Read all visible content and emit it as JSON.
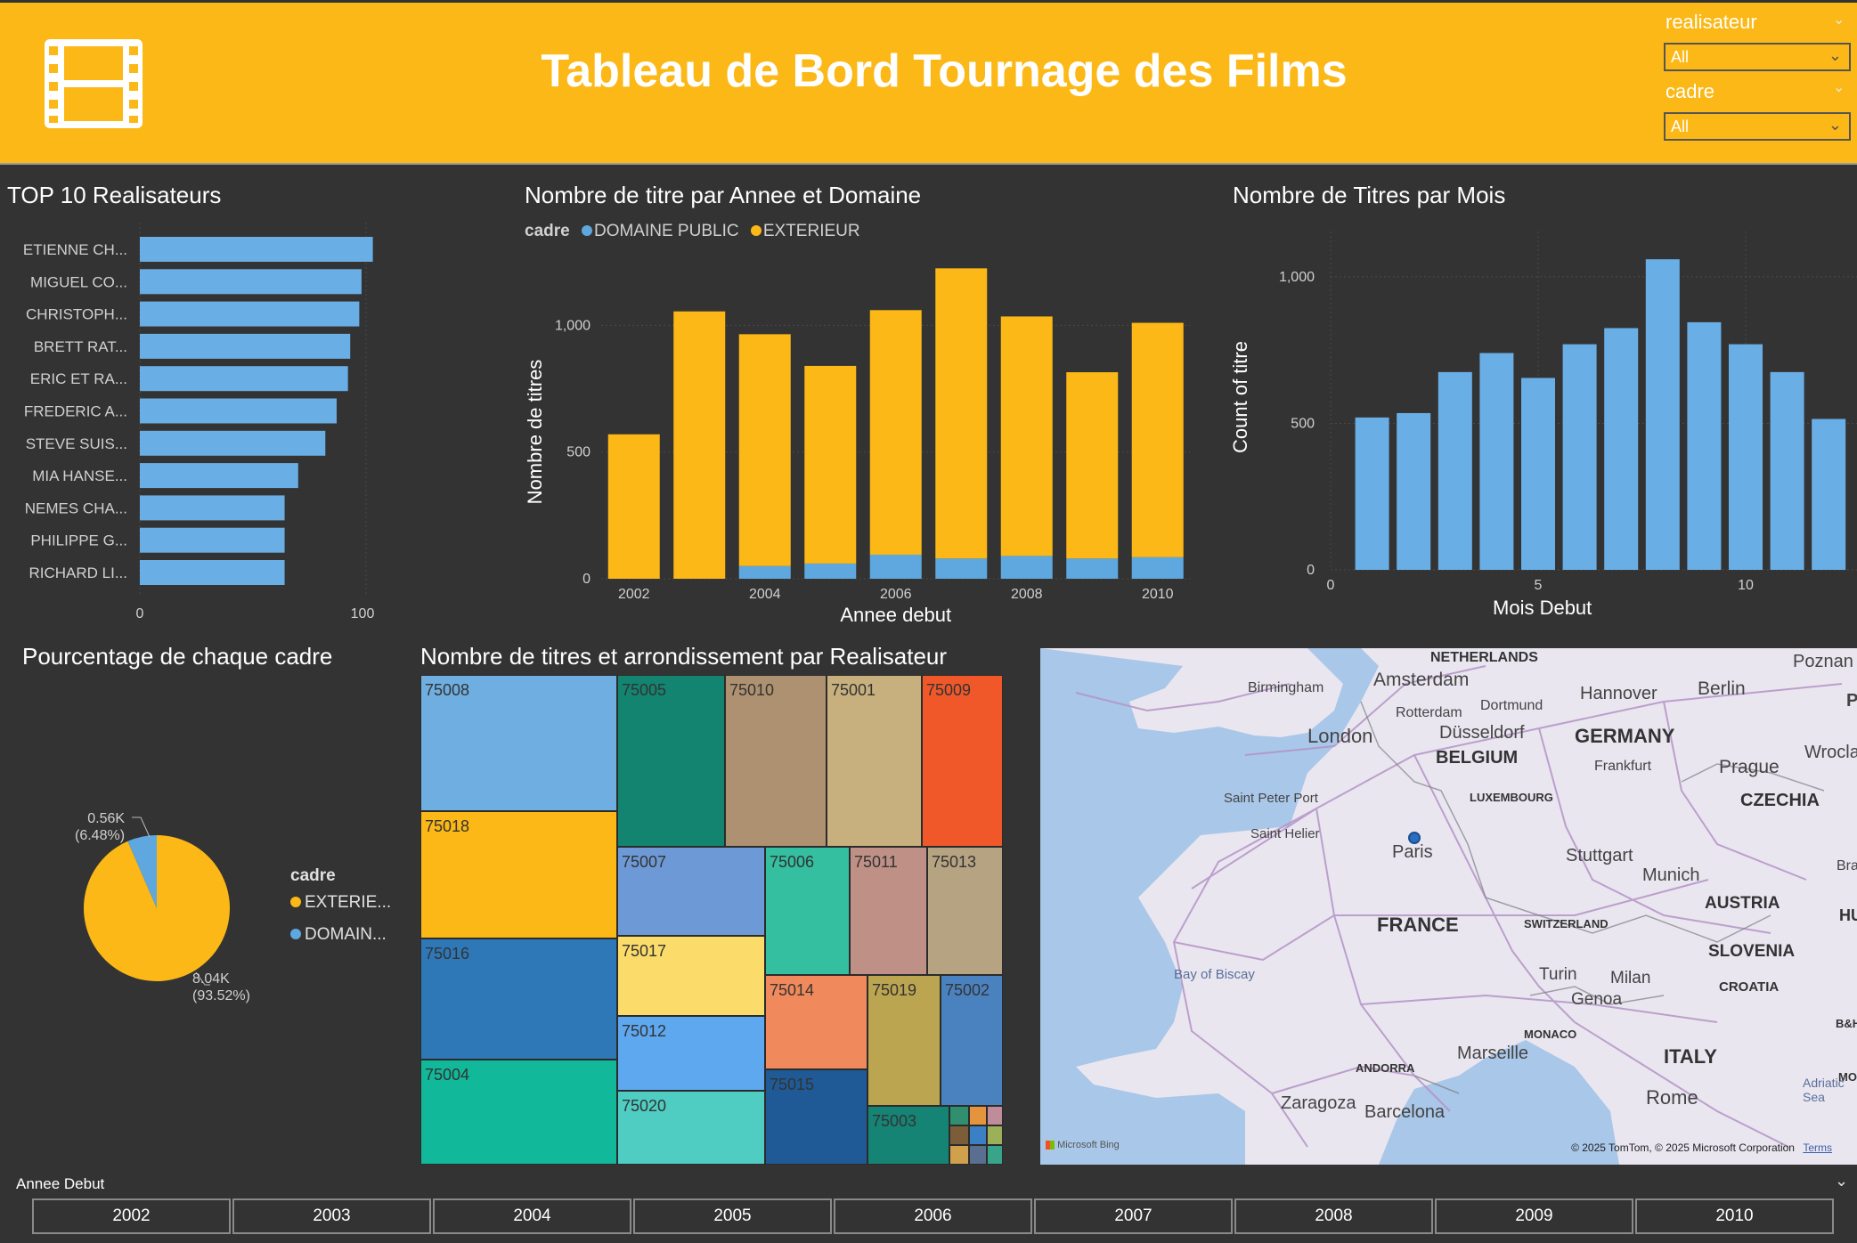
{
  "header": {
    "title": "Tableau de Bord Tournage des Films",
    "icon": "film-strip-icon"
  },
  "slicers": {
    "realisateur": {
      "label": "realisateur",
      "value": "All"
    },
    "cadre": {
      "label": "cadre",
      "value": "All"
    }
  },
  "top10": {
    "title": "TOP 10 Realisateurs",
    "items": [
      {
        "name": "ETIENNE CH...",
        "value": 103
      },
      {
        "name": "MIGUEL CO...",
        "value": 98
      },
      {
        "name": "CHRISTOPH...",
        "value": 97
      },
      {
        "name": "BRETT RAT...",
        "value": 93
      },
      {
        "name": "ERIC ET RA...",
        "value": 92
      },
      {
        "name": "FREDERIC A...",
        "value": 87
      },
      {
        "name": "STEVE SUIS...",
        "value": 82
      },
      {
        "name": "MIA HANSE...",
        "value": 70
      },
      {
        "name": "NEMES CHA...",
        "value": 64
      },
      {
        "name": "PHILIPPE G...",
        "value": 64
      },
      {
        "name": "RICHARD LI...",
        "value": 64
      }
    ],
    "ticks": [
      "0",
      "100"
    ]
  },
  "year_chart": {
    "title": "Nombre de titre par Annee et Domaine",
    "legend_title": "cadre",
    "legend": [
      {
        "name": "DOMAINE PUBLIC",
        "color": "#5ea8df"
      },
      {
        "name": "EXTERIEUR",
        "color": "#fbb816"
      }
    ],
    "xlabel": "Annee debut",
    "ylabel": "Nombre de titres",
    "yticks": [
      "0",
      "500",
      "1,000"
    ],
    "xticks": [
      "2002",
      "2004",
      "2006",
      "2008",
      "2010"
    ]
  },
  "month_chart": {
    "title": "Nombre de Titres par Mois",
    "xlabel": "Mois Debut",
    "ylabel": "Count of titre",
    "yticks": [
      "0",
      "500",
      "1,000"
    ],
    "xticks": [
      "0",
      "5",
      "10"
    ]
  },
  "pie": {
    "title": "Pourcentage de chaque cadre",
    "legend_title": "cadre",
    "legend": [
      {
        "name": "EXTERIE...",
        "color": "#fbb816"
      },
      {
        "name": "DOMAIN...",
        "color": "#5ea8df"
      }
    ],
    "label_small_value": "0.56K",
    "label_small_pct": "(6.48%)",
    "label_big_value": "8.04K",
    "label_big_pct": "(93.52%)"
  },
  "treemap": {
    "title": "Nombre de titres et arrondissement par Realisateur",
    "cells": [
      {
        "label": "75008",
        "color": "#6faee0"
      },
      {
        "label": "75018",
        "color": "#fbb816"
      },
      {
        "label": "75016",
        "color": "#2f78b8"
      },
      {
        "label": "75004",
        "color": "#12b89a"
      },
      {
        "label": "75005",
        "color": "#128470"
      },
      {
        "label": "75010",
        "color": "#ae9170"
      },
      {
        "label": "75001",
        "color": "#c8b07e"
      },
      {
        "label": "75009",
        "color": "#f0582a"
      },
      {
        "label": "75007",
        "color": "#6d9ad6"
      },
      {
        "label": "75006",
        "color": "#33bfa0"
      },
      {
        "label": "75011",
        "color": "#bf9186"
      },
      {
        "label": "75013",
        "color": "#b6a382"
      },
      {
        "label": "75017",
        "color": "#fbdc6a"
      },
      {
        "label": "75012",
        "color": "#5ea8f0"
      },
      {
        "label": "75020",
        "color": "#4fcdc3"
      },
      {
        "label": "75014",
        "color": "#f08a5c"
      },
      {
        "label": "75019",
        "color": "#bca550"
      },
      {
        "label": "75002",
        "color": "#4a82c0"
      },
      {
        "label": "75015",
        "color": "#1f5a96"
      },
      {
        "label": "75003",
        "color": "#158474"
      }
    ]
  },
  "map": {
    "cities": [
      "Birmingham",
      "Amsterdam",
      "Rotterdam",
      "Dortmund",
      "Hannover",
      "Berlin",
      "Poznan",
      "London",
      "Düsseldorf",
      "Wroclaw",
      "Prague",
      "Frankfurt",
      "Saint Peter Port",
      "Saint Helier",
      "Paris",
      "Stuttgart",
      "Munich",
      "Turin",
      "Milan",
      "Genoa",
      "Marseille",
      "Zaragoza",
      "Barcelona",
      "Rome"
    ],
    "countries": [
      "NETHERLANDS",
      "BELGIUM",
      "GERMANY",
      "LUXEMBOURG",
      "CZECHIA",
      "FRANCE",
      "SWITZERLAND",
      "AUSTRIA",
      "SLOVENIA",
      "CROATIA",
      "MONACO",
      "ANDORRA",
      "ITALY"
    ],
    "water": [
      "Bay of Biscay",
      "Adriatic Sea"
    ],
    "edge_labels": [
      "P",
      "Bra",
      "HU",
      "B&H",
      "MO"
    ],
    "copyright": "© 2025 TomTom, © 2025 Microsoft Corporation",
    "terms": "Terms",
    "brand": "Microsoft Bing"
  },
  "year_slicer": {
    "label": "Annee Debut",
    "years": [
      "2002",
      "2003",
      "2004",
      "2005",
      "2006",
      "2007",
      "2008",
      "2009",
      "2010"
    ]
  },
  "chart_data": [
    {
      "type": "bar",
      "title": "TOP 10 Realisateurs",
      "categories": [
        "ETIENNE CH...",
        "MIGUEL CO...",
        "CHRISTOPH...",
        "BRETT RAT...",
        "ERIC ET RA...",
        "FREDERIC A...",
        "STEVE SUIS...",
        "MIA HANSE...",
        "NEMES CHA...",
        "PHILIPPE G...",
        "RICHARD LI..."
      ],
      "values": [
        103,
        98,
        97,
        93,
        92,
        87,
        82,
        70,
        64,
        64,
        64
      ],
      "xlim": [
        0,
        110
      ],
      "orientation": "horizontal"
    },
    {
      "type": "bar",
      "title": "Nombre de titre par Annee et Domaine",
      "xlabel": "Annee debut",
      "ylabel": "Nombre de titres",
      "categories": [
        "2002",
        "2003",
        "2004",
        "2005",
        "2006",
        "2007",
        "2008",
        "2009",
        "2010"
      ],
      "series": [
        {
          "name": "DOMAINE PUBLIC",
          "values": [
            0,
            0,
            50,
            60,
            95,
            80,
            90,
            80,
            85
          ]
        },
        {
          "name": "EXTERIEUR",
          "values": [
            570,
            1055,
            915,
            780,
            965,
            1145,
            945,
            735,
            925
          ]
        }
      ],
      "stacked": true,
      "ylim": [
        0,
        1300
      ]
    },
    {
      "type": "bar",
      "title": "Nombre de Titres par Mois",
      "xlabel": "Mois Debut",
      "ylabel": "Count of titre",
      "x": [
        1,
        2,
        3,
        4,
        5,
        6,
        7,
        8,
        9,
        10,
        11,
        12
      ],
      "values": [
        520,
        535,
        675,
        740,
        655,
        770,
        825,
        1060,
        845,
        770,
        675,
        515
      ],
      "xlim": [
        0,
        12.5
      ],
      "ylim": [
        0,
        1100
      ]
    },
    {
      "type": "pie",
      "title": "Pourcentage de chaque cadre",
      "categories": [
        "EXTERIEUR",
        "DOMAINE PUBLIC"
      ],
      "values": [
        8040,
        560
      ],
      "percent": [
        93.52,
        6.48
      ]
    }
  ]
}
